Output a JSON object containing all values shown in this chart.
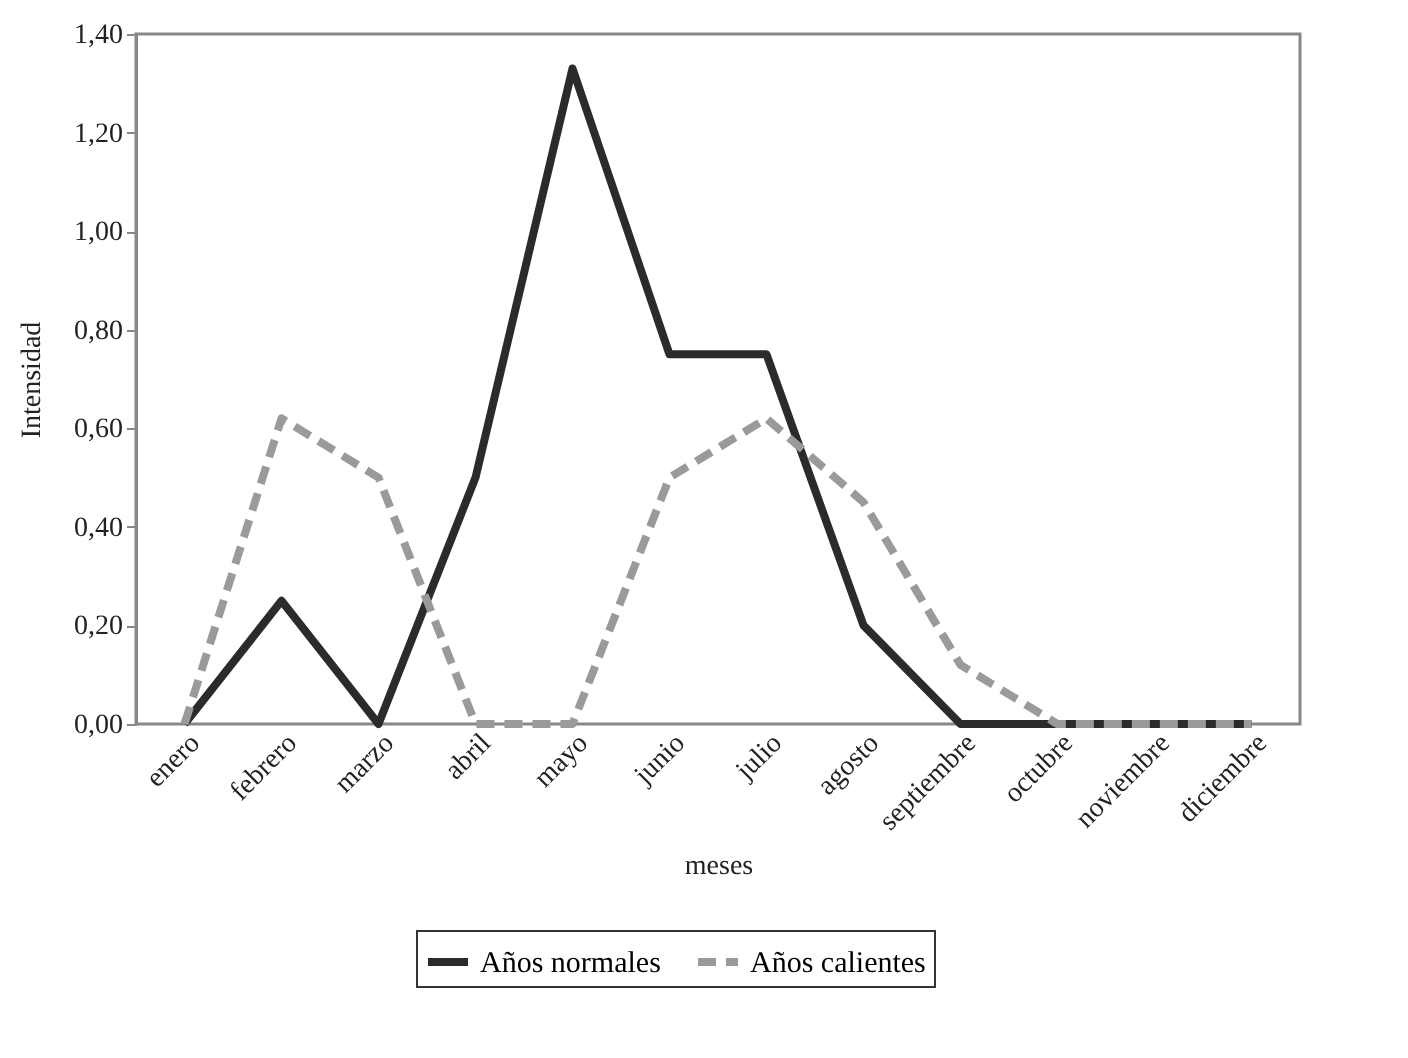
{
  "chart_data": {
    "type": "line",
    "xlabel": "meses",
    "ylabel": "Intensidad",
    "categories": [
      "enero",
      "febrero",
      "marzo",
      "abril",
      "mayo",
      "junio",
      "julio",
      "agosto",
      "septiembre",
      "octubre",
      "noviembre",
      "diciembre"
    ],
    "series": [
      {
        "name": "Años normales",
        "color": "#2b2b2b",
        "line_style": "solid",
        "values": [
          0,
          0.25,
          0,
          0.5,
          1.33,
          0.75,
          0.75,
          0.2,
          0,
          0,
          0,
          0
        ]
      },
      {
        "name": "Años calientes",
        "color": "#9a9a9a",
        "line_style": "dashed",
        "values": [
          0,
          0.62,
          0.5,
          0,
          0,
          0.5,
          0.62,
          0.45,
          0.12,
          0,
          0,
          0
        ]
      }
    ],
    "ylim": [
      0,
      1.4
    ],
    "yticks": [
      {
        "value": 0,
        "label": "0,00"
      },
      {
        "value": 0.2,
        "label": "0,20"
      },
      {
        "value": 0.4,
        "label": "0,40"
      },
      {
        "value": 0.6,
        "label": "0,60"
      },
      {
        "value": 0.8,
        "label": "0,80"
      },
      {
        "value": 1,
        "label": "1,00"
      },
      {
        "value": 1.2,
        "label": "1,20"
      },
      {
        "value": 1.4,
        "label": "1,40"
      }
    ],
    "grid": false,
    "legend": "bottom"
  }
}
